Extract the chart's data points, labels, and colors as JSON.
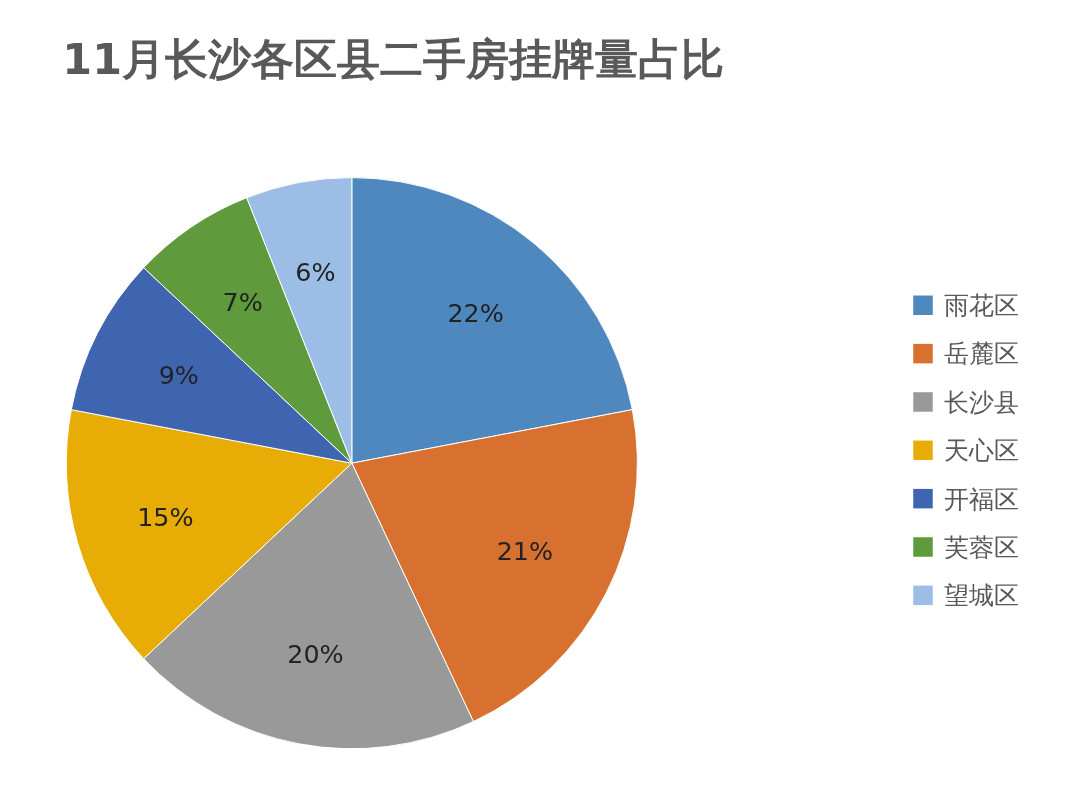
{
  "chart_data": {
    "type": "pie",
    "title": "11月长沙各区县二手房挂牌量占比",
    "categories": [
      "雨花区",
      "岳麓区",
      "长沙县",
      "天心区",
      "开福区",
      "芙蓉区",
      "望城区"
    ],
    "values": [
      22,
      21,
      20,
      15,
      9,
      7,
      6
    ],
    "colors": [
      "#4f87bf",
      "#d8702f",
      "#999999",
      "#e8ac06",
      "#3f65b0",
      "#5f9a3c",
      "#9cbde5"
    ],
    "value_labels": [
      "22%",
      "21%",
      "20%",
      "15%",
      "9%",
      "7%",
      "6%"
    ],
    "legend": "right"
  }
}
